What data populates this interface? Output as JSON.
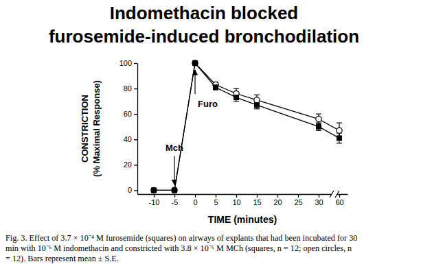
{
  "chart_data": {
    "type": "line",
    "title": [
      "Indomethacin blocked",
      "furosemide-induced bronchodilation"
    ],
    "xlabel": "TIME (minutes)",
    "ylabel": [
      "CONSTRICTION",
      "(% Maximal Response)"
    ],
    "x": [
      -10,
      -5,
      0,
      5,
      10,
      15,
      30,
      60
    ],
    "xlim": [
      -14,
      62
    ],
    "xticks": [
      -10,
      -5,
      0,
      5,
      10,
      15,
      20,
      25,
      30,
      60
    ],
    "ylim": [
      -3,
      100
    ],
    "yticks": [
      0,
      20,
      40,
      60,
      80,
      100
    ],
    "series": [
      {
        "color": "#000000",
        "marker": "square",
        "values": [
          0,
          0,
          100,
          81,
          73,
          67,
          50,
          41
        ],
        "errors": [
          0,
          0,
          0,
          2,
          3,
          3,
          3,
          4
        ]
      },
      {
        "color": "#000000",
        "marker": "circle",
        "values": [
          0,
          0,
          100,
          83,
          76,
          71,
          56,
          47
        ],
        "errors": [
          0,
          0,
          0,
          2,
          4,
          4,
          4,
          6
        ]
      }
    ],
    "annotations": [
      {
        "text": "Mch",
        "x": -5
      },
      {
        "text": "Furo",
        "x": 0
      }
    ],
    "caption": [
      "Fig. 3. Effect of 3.7 × 10⁻⁴ M furosemide (squares) on airways of explants that had been incubated for 30",
      "min with 10⁻⁶ M indomethacin and constricted with 3.8 × 10⁻⁶ M MCh (squares, n = 12; open circles, n",
      "= 12). Bars represent mean ± S.E."
    ]
  }
}
